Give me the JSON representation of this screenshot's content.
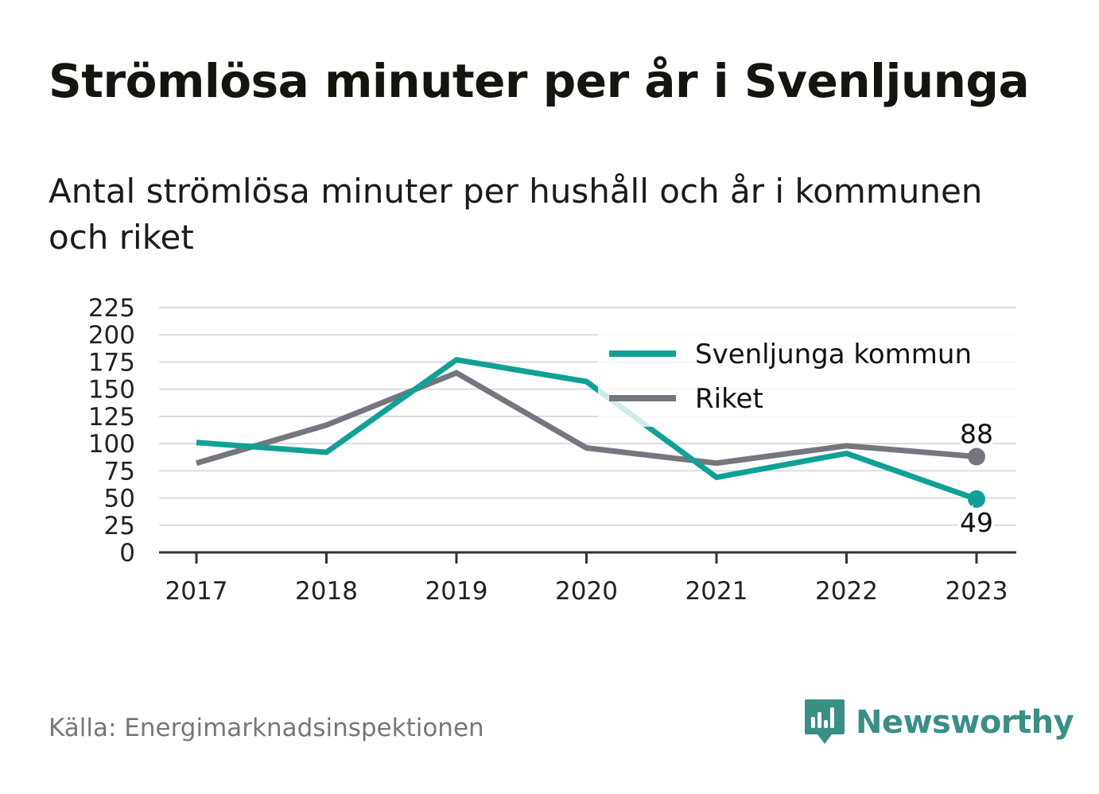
{
  "title": "Strömlösa minuter per år i Svenljunga",
  "subtitle": "Antal strömlösa minuter per hushåll och år i kommunen och riket",
  "source": "Källa: Energimarknadsinspektionen",
  "brand": {
    "name": "Newsworthy",
    "icon": "newsworthy-logo-icon",
    "color": "#3a8f85"
  },
  "chart_data": {
    "type": "line",
    "x": [
      "2017",
      "2018",
      "2019",
      "2020",
      "2021",
      "2022",
      "2023"
    ],
    "ylim": [
      0,
      225
    ],
    "yticks": [
      "0",
      "25",
      "50",
      "75",
      "100",
      "125",
      "150",
      "175",
      "200",
      "225"
    ],
    "grid": true,
    "legend_position": "top-right",
    "series": [
      {
        "name": "Svenljunga kommun",
        "color": "#11a097",
        "values": [
          101,
          92,
          177,
          157,
          69,
          91,
          49
        ],
        "end_label": "49"
      },
      {
        "name": "Riket",
        "color": "#76767f",
        "values": [
          82,
          117,
          165,
          96,
          82,
          98,
          88
        ],
        "end_label": "88"
      }
    ]
  }
}
